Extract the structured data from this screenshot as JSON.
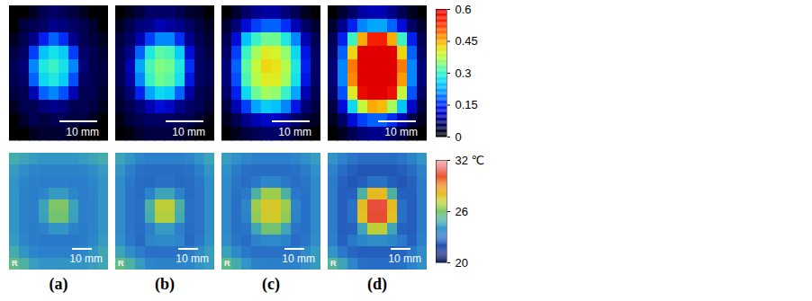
{
  "chart_data": [
    {
      "type": "heatmap",
      "tick_labels": false,
      "colorbar": {
        "range": [
          0,
          0.6
        ],
        "ticks": [
          0,
          0.15,
          0.3,
          0.45,
          0.6
        ]
      },
      "panels": [
        {
          "annotation": "10 mm",
          "cells": [
            [
              0,
              0,
              0.02,
              0.05,
              0.06,
              0.05,
              0.04,
              0.02,
              0,
              0
            ],
            [
              0,
              0.04,
              0.05,
              0.06,
              0.08,
              0.07,
              0.06,
              0.05,
              0.03,
              0
            ],
            [
              0.02,
              0.05,
              0.08,
              0.14,
              0.18,
              0.15,
              0.08,
              0.05,
              0.04,
              0.02
            ],
            [
              0.04,
              0.06,
              0.16,
              0.24,
              0.27,
              0.25,
              0.16,
              0.06,
              0.05,
              0.03
            ],
            [
              0.05,
              0.07,
              0.2,
              0.28,
              0.3,
              0.27,
              0.2,
              0.07,
              0.05,
              0.04
            ],
            [
              0.05,
              0.06,
              0.18,
              0.26,
              0.28,
              0.25,
              0.17,
              0.06,
              0.05,
              0.04
            ],
            [
              0.04,
              0.05,
              0.1,
              0.18,
              0.2,
              0.17,
              0.1,
              0.05,
              0.05,
              0.03
            ],
            [
              0.02,
              0.05,
              0.05,
              0.07,
              0.08,
              0.07,
              0.05,
              0.05,
              0.04,
              0.02
            ],
            [
              0,
              0.03,
              0.05,
              0.04,
              0.05,
              0.05,
              0.04,
              0.04,
              0.02,
              0
            ],
            [
              0,
              0,
              0.02,
              0.03,
              0.03,
              0.03,
              0.02,
              0,
              0,
              0
            ]
          ]
        },
        {
          "annotation": "10 mm",
          "cells": [
            [
              0,
              0.02,
              0.04,
              0.06,
              0.06,
              0.06,
              0.05,
              0.03,
              0.02,
              0
            ],
            [
              0.02,
              0.05,
              0.07,
              0.08,
              0.1,
              0.09,
              0.08,
              0.06,
              0.04,
              0.02
            ],
            [
              0.04,
              0.06,
              0.1,
              0.16,
              0.2,
              0.2,
              0.15,
              0.08,
              0.05,
              0.03
            ],
            [
              0.05,
              0.08,
              0.18,
              0.28,
              0.32,
              0.31,
              0.25,
              0.12,
              0.06,
              0.04
            ],
            [
              0.05,
              0.1,
              0.22,
              0.31,
              0.34,
              0.33,
              0.28,
              0.15,
              0.06,
              0.05
            ],
            [
              0.05,
              0.09,
              0.2,
              0.3,
              0.33,
              0.32,
              0.27,
              0.13,
              0.06,
              0.05
            ],
            [
              0.04,
              0.07,
              0.14,
              0.22,
              0.26,
              0.25,
              0.18,
              0.09,
              0.05,
              0.04
            ],
            [
              0.03,
              0.05,
              0.07,
              0.1,
              0.12,
              0.11,
              0.08,
              0.06,
              0.05,
              0.03
            ],
            [
              0.01,
              0.04,
              0.05,
              0.06,
              0.06,
              0.06,
              0.05,
              0.05,
              0.03,
              0.01
            ],
            [
              0,
              0.01,
              0.03,
              0.04,
              0.04,
              0.04,
              0.03,
              0.02,
              0,
              0
            ]
          ]
        },
        {
          "annotation": "10 mm",
          "cells": [
            [
              0,
              0.03,
              0.06,
              0.08,
              0.09,
              0.09,
              0.07,
              0.05,
              0.02,
              0
            ],
            [
              0.03,
              0.07,
              0.12,
              0.16,
              0.18,
              0.18,
              0.15,
              0.1,
              0.06,
              0.03
            ],
            [
              0.05,
              0.12,
              0.24,
              0.3,
              0.33,
              0.33,
              0.28,
              0.2,
              0.1,
              0.05
            ],
            [
              0.06,
              0.16,
              0.3,
              0.36,
              0.4,
              0.39,
              0.35,
              0.26,
              0.13,
              0.06
            ],
            [
              0.07,
              0.18,
              0.32,
              0.38,
              0.42,
              0.41,
              0.37,
              0.28,
              0.14,
              0.06
            ],
            [
              0.07,
              0.17,
              0.31,
              0.37,
              0.4,
              0.4,
              0.36,
              0.27,
              0.13,
              0.06
            ],
            [
              0.06,
              0.14,
              0.26,
              0.33,
              0.36,
              0.35,
              0.3,
              0.22,
              0.1,
              0.05
            ],
            [
              0.04,
              0.1,
              0.16,
              0.22,
              0.25,
              0.24,
              0.2,
              0.13,
              0.07,
              0.04
            ],
            [
              0.02,
              0.05,
              0.08,
              0.1,
              0.11,
              0.11,
              0.09,
              0.06,
              0.04,
              0.02
            ],
            [
              0,
              0.02,
              0.04,
              0.05,
              0.06,
              0.06,
              0.05,
              0.03,
              0.01,
              0
            ]
          ]
        },
        {
          "annotation": "10 mm",
          "cells": [
            [
              0,
              0.03,
              0.06,
              0.09,
              0.1,
              0.1,
              0.08,
              0.05,
              0.02,
              0
            ],
            [
              0.03,
              0.08,
              0.14,
              0.2,
              0.22,
              0.22,
              0.18,
              0.12,
              0.06,
              0.03
            ],
            [
              0.05,
              0.14,
              0.3,
              0.45,
              0.55,
              0.55,
              0.45,
              0.3,
              0.14,
              0.05
            ],
            [
              0.06,
              0.18,
              0.42,
              0.6,
              0.6,
              0.6,
              0.6,
              0.42,
              0.18,
              0.06
            ],
            [
              0.07,
              0.2,
              0.48,
              0.6,
              0.6,
              0.6,
              0.6,
              0.48,
              0.2,
              0.07
            ],
            [
              0.07,
              0.2,
              0.47,
              0.6,
              0.6,
              0.6,
              0.6,
              0.46,
              0.2,
              0.07
            ],
            [
              0.06,
              0.17,
              0.4,
              0.58,
              0.6,
              0.6,
              0.57,
              0.38,
              0.17,
              0.06
            ],
            [
              0.04,
              0.12,
              0.26,
              0.38,
              0.45,
              0.44,
              0.36,
              0.24,
              0.11,
              0.04
            ],
            [
              0.02,
              0.06,
              0.12,
              0.16,
              0.18,
              0.18,
              0.15,
              0.1,
              0.05,
              0.02
            ],
            [
              0,
              0.02,
              0.05,
              0.07,
              0.08,
              0.08,
              0.06,
              0.04,
              0.01,
              0
            ]
          ]
        }
      ]
    },
    {
      "type": "heatmap",
      "tick_labels": false,
      "corner_label": "R",
      "colorbar": {
        "range": [
          20,
          32
        ],
        "ticks": [
          20,
          26,
          {
            "value": 32,
            "label": "32 ℃"
          }
        ]
      },
      "panels": [
        {
          "annotation": "10 mm",
          "cells": [
            [
              24.8,
              24.5,
              24.2,
              24,
              24,
              24,
              24,
              24.2,
              24.5,
              24.8
            ],
            [
              24.2,
              23.8,
              23.6,
              23.5,
              23.5,
              23.5,
              23.5,
              23.6,
              23.8,
              24.2
            ],
            [
              24,
              23.6,
              23.4,
              23.3,
              23.4,
              23.4,
              23.3,
              23.4,
              23.6,
              24
            ],
            [
              24,
              23.5,
              23.3,
              23.6,
              24.2,
              24.2,
              23.6,
              23.3,
              23.5,
              24
            ],
            [
              24,
              23.5,
              23.4,
              24.5,
              26,
              26,
              24.5,
              23.4,
              23.5,
              24
            ],
            [
              24,
              23.5,
              23.4,
              24.4,
              25.8,
              25.8,
              24.4,
              23.4,
              23.5,
              24
            ],
            [
              24,
              23.5,
              23.3,
              23.5,
              24,
              24,
              23.5,
              23.3,
              23.5,
              24
            ],
            [
              24.2,
              23.6,
              23.3,
              23.2,
              23.2,
              23.2,
              23.2,
              23.3,
              23.6,
              24.2
            ],
            [
              24.8,
              24,
              23.6,
              23.4,
              23.4,
              23.4,
              23.4,
              23.6,
              24,
              24.6
            ],
            [
              25.5,
              25,
              24.3,
              24,
              24,
              24,
              24,
              24,
              24.3,
              24.6
            ]
          ]
        },
        {
          "annotation": "10 mm",
          "cells": [
            [
              24.5,
              24,
              23.6,
              23.4,
              23.4,
              23.4,
              23.4,
              23.6,
              24,
              24.5
            ],
            [
              24,
              23.4,
              23,
              22.9,
              22.9,
              22.9,
              22.9,
              23,
              23.4,
              24
            ],
            [
              23.8,
              23.2,
              22.9,
              22.8,
              23,
              23,
              22.8,
              22.9,
              23.2,
              23.8
            ],
            [
              23.8,
              23.1,
              22.9,
              23.5,
              24.5,
              24.5,
              23.5,
              22.9,
              23.1,
              23.8
            ],
            [
              23.8,
              23.1,
              23,
              25,
              27,
              27,
              25,
              23,
              23.1,
              23.8
            ],
            [
              23.8,
              23.1,
              23,
              24.8,
              26.8,
              26.8,
              24.8,
              23,
              23.1,
              23.8
            ],
            [
              23.8,
              23.1,
              22.9,
              23.4,
              24.2,
              24.2,
              23.4,
              22.9,
              23.1,
              23.8
            ],
            [
              23.9,
              23.2,
              22.8,
              23.6,
              23.7,
              23.7,
              23.6,
              22.8,
              23.2,
              23.9
            ],
            [
              24.5,
              23.8,
              23.3,
              23,
              23,
              23,
              23,
              23.3,
              23.8,
              24.3
            ],
            [
              25.5,
              25,
              24.2,
              23.6,
              23.5,
              23.5,
              23.5,
              23.6,
              24,
              24.3
            ]
          ]
        },
        {
          "annotation": "10 mm",
          "cells": [
            [
              24.3,
              23.9,
              23.6,
              23.4,
              23.4,
              23.4,
              23.4,
              23.6,
              23.9,
              24.3
            ],
            [
              23.9,
              23.3,
              23,
              22.9,
              22.9,
              22.9,
              22.9,
              23,
              23.3,
              23.9
            ],
            [
              23.7,
              23.1,
              22.9,
              23.2,
              23.6,
              23.6,
              23.2,
              22.9,
              23.1,
              23.7
            ],
            [
              23.7,
              23,
              23.2,
              25,
              26.5,
              26.5,
              25,
              23.2,
              23,
              23.7
            ],
            [
              23.7,
              23,
              23.6,
              26.5,
              27.5,
              27.5,
              26.5,
              23.6,
              23,
              23.7
            ],
            [
              23.7,
              23,
              23.5,
              26.3,
              27.4,
              27.4,
              26.3,
              23.5,
              23,
              23.7
            ],
            [
              23.7,
              23,
              23.1,
              24.6,
              25.8,
              25.8,
              24.6,
              23.1,
              23,
              23.7
            ],
            [
              23.8,
              23.1,
              22.9,
              23.5,
              23.7,
              23.7,
              23.5,
              22.9,
              23.1,
              23.8
            ],
            [
              24.4,
              23.7,
              23.2,
              23,
              23,
              23,
              23,
              23.2,
              23.7,
              24.2
            ],
            [
              25.4,
              24.8,
              24,
              23.5,
              23.4,
              23.4,
              23.4,
              23.5,
              23.9,
              24.2
            ]
          ]
        },
        {
          "annotation": "10 mm",
          "cells": [
            [
              24,
              23.5,
              23.1,
              22.9,
              22.9,
              22.9,
              22.9,
              23.1,
              23.5,
              24
            ],
            [
              23.5,
              22.9,
              22.5,
              22.3,
              22.3,
              22.3,
              22.3,
              22.5,
              22.9,
              23.5
            ],
            [
              23.3,
              22.6,
              22.3,
              22.5,
              23,
              23,
              22.5,
              22.3,
              22.6,
              23.3
            ],
            [
              23.3,
              22.5,
              22.6,
              25,
              28,
              28,
              25,
              22.6,
              22.5,
              23.3
            ],
            [
              23.3,
              22.5,
              23,
              28,
              30.5,
              30.5,
              28,
              23,
              22.5,
              23.3
            ],
            [
              23.3,
              22.5,
              23,
              27.8,
              30.3,
              30.3,
              27.8,
              23,
              22.5,
              23.3
            ],
            [
              23.3,
              22.5,
              22.6,
              24.6,
              27,
              27,
              24.6,
              22.6,
              22.5,
              23.3
            ],
            [
              23.4,
              22.6,
              23.2,
              23.6,
              23.8,
              23.8,
              23.6,
              23.2,
              22.6,
              23.4
            ],
            [
              24,
              23.2,
              22.7,
              22.5,
              22.5,
              22.5,
              22.5,
              22.7,
              23.2,
              23.8
            ],
            [
              25.2,
              24.5,
              23.6,
              23,
              22.9,
              22.9,
              22.9,
              23,
              23.5,
              23.9
            ]
          ]
        }
      ]
    }
  ],
  "panel_labels": [
    "(a)",
    "(b)",
    "(c)",
    "(d)"
  ]
}
